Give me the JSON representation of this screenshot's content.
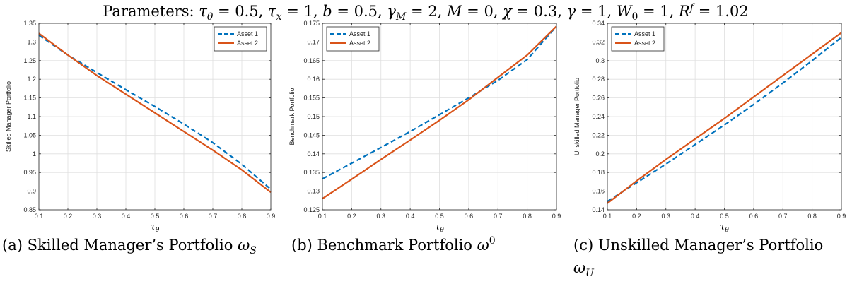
{
  "figure": {
    "parameters_line": "Parameters: τθ = 0.5, τx = 1, b = 0.5, γM = 2, M = 0, χ = 0.3, γ = 1, W0 = 1, Rf = 1.02"
  },
  "colors": {
    "asset1": "#0072BD",
    "asset2": "#D95319",
    "grid": "#dfdfdf",
    "axis": "#262626"
  },
  "chart_data": [
    {
      "type": "line",
      "caption": "(a) Skilled Manager's Portfolio ωS",
      "xlabel": "τθ",
      "ylabel": "Skilled Manager Portfolio",
      "xlim": [
        0.1,
        0.9
      ],
      "ylim": [
        0.85,
        1.35
      ],
      "xticks": [
        0.1,
        0.2,
        0.3,
        0.4,
        0.5,
        0.6,
        0.7,
        0.8,
        0.9
      ],
      "yticks": [
        0.85,
        0.9,
        0.95,
        1,
        1.05,
        1.1,
        1.15,
        1.2,
        1.25,
        1.3,
        1.35
      ],
      "grid": true,
      "legend_position": "top-right",
      "x": [
        0.1,
        0.2,
        0.3,
        0.4,
        0.5,
        0.6,
        0.7,
        0.8,
        0.9
      ],
      "series": [
        {
          "name": "Asset 1",
          "style": "dashed",
          "values": [
            1.318,
            1.265,
            1.218,
            1.172,
            1.127,
            1.08,
            1.03,
            0.972,
            0.905
          ]
        },
        {
          "name": "Asset 2",
          "style": "solid",
          "values": [
            1.323,
            1.265,
            1.21,
            1.16,
            1.11,
            1.06,
            1.01,
            0.957,
            0.897
          ]
        }
      ]
    },
    {
      "type": "line",
      "caption": "(b) Benchmark Portfolio ω0",
      "xlabel": "τθ",
      "ylabel": "Benchmark Portfolio",
      "xlim": [
        0.1,
        0.9
      ],
      "ylim": [
        0.125,
        0.175
      ],
      "xticks": [
        0.1,
        0.2,
        0.3,
        0.4,
        0.5,
        0.6,
        0.7,
        0.8,
        0.9
      ],
      "yticks": [
        0.125,
        0.13,
        0.135,
        0.14,
        0.145,
        0.15,
        0.155,
        0.16,
        0.165,
        0.17,
        0.175
      ],
      "grid": true,
      "legend_position": "top-left",
      "x": [
        0.1,
        0.2,
        0.3,
        0.4,
        0.5,
        0.6,
        0.7,
        0.8,
        0.9
      ],
      "series": [
        {
          "name": "Asset 1",
          "style": "dashed",
          "values": [
            0.1333,
            0.1375,
            0.1417,
            0.146,
            0.1505,
            0.155,
            0.1597,
            0.1653,
            0.1742
          ]
        },
        {
          "name": "Asset 2",
          "style": "solid",
          "values": [
            0.128,
            0.1332,
            0.1385,
            0.1437,
            0.149,
            0.1545,
            0.1605,
            0.1665,
            0.1742
          ]
        }
      ]
    },
    {
      "type": "line",
      "caption": "(c) Unskilled Manager's Portfolio ωU",
      "xlabel": "τθ",
      "ylabel": "Unskilled Manager Portfolio",
      "xlim": [
        0.1,
        0.9
      ],
      "ylim": [
        0.14,
        0.34
      ],
      "xticks": [
        0.1,
        0.2,
        0.3,
        0.4,
        0.5,
        0.6,
        0.7,
        0.8,
        0.9
      ],
      "yticks": [
        0.14,
        0.16,
        0.18,
        0.2,
        0.22,
        0.24,
        0.26,
        0.28,
        0.3,
        0.32,
        0.34
      ],
      "grid": true,
      "legend_position": "top-left",
      "x": [
        0.1,
        0.2,
        0.3,
        0.4,
        0.5,
        0.6,
        0.7,
        0.8,
        0.9
      ],
      "series": [
        {
          "name": "Asset 1",
          "style": "dashed",
          "values": [
            0.149,
            0.169,
            0.189,
            0.21,
            0.231,
            0.253,
            0.276,
            0.3,
            0.325
          ]
        },
        {
          "name": "Asset 2",
          "style": "solid",
          "values": [
            0.147,
            0.171,
            0.194,
            0.216,
            0.238,
            0.261,
            0.284,
            0.307,
            0.33
          ]
        }
      ]
    }
  ]
}
